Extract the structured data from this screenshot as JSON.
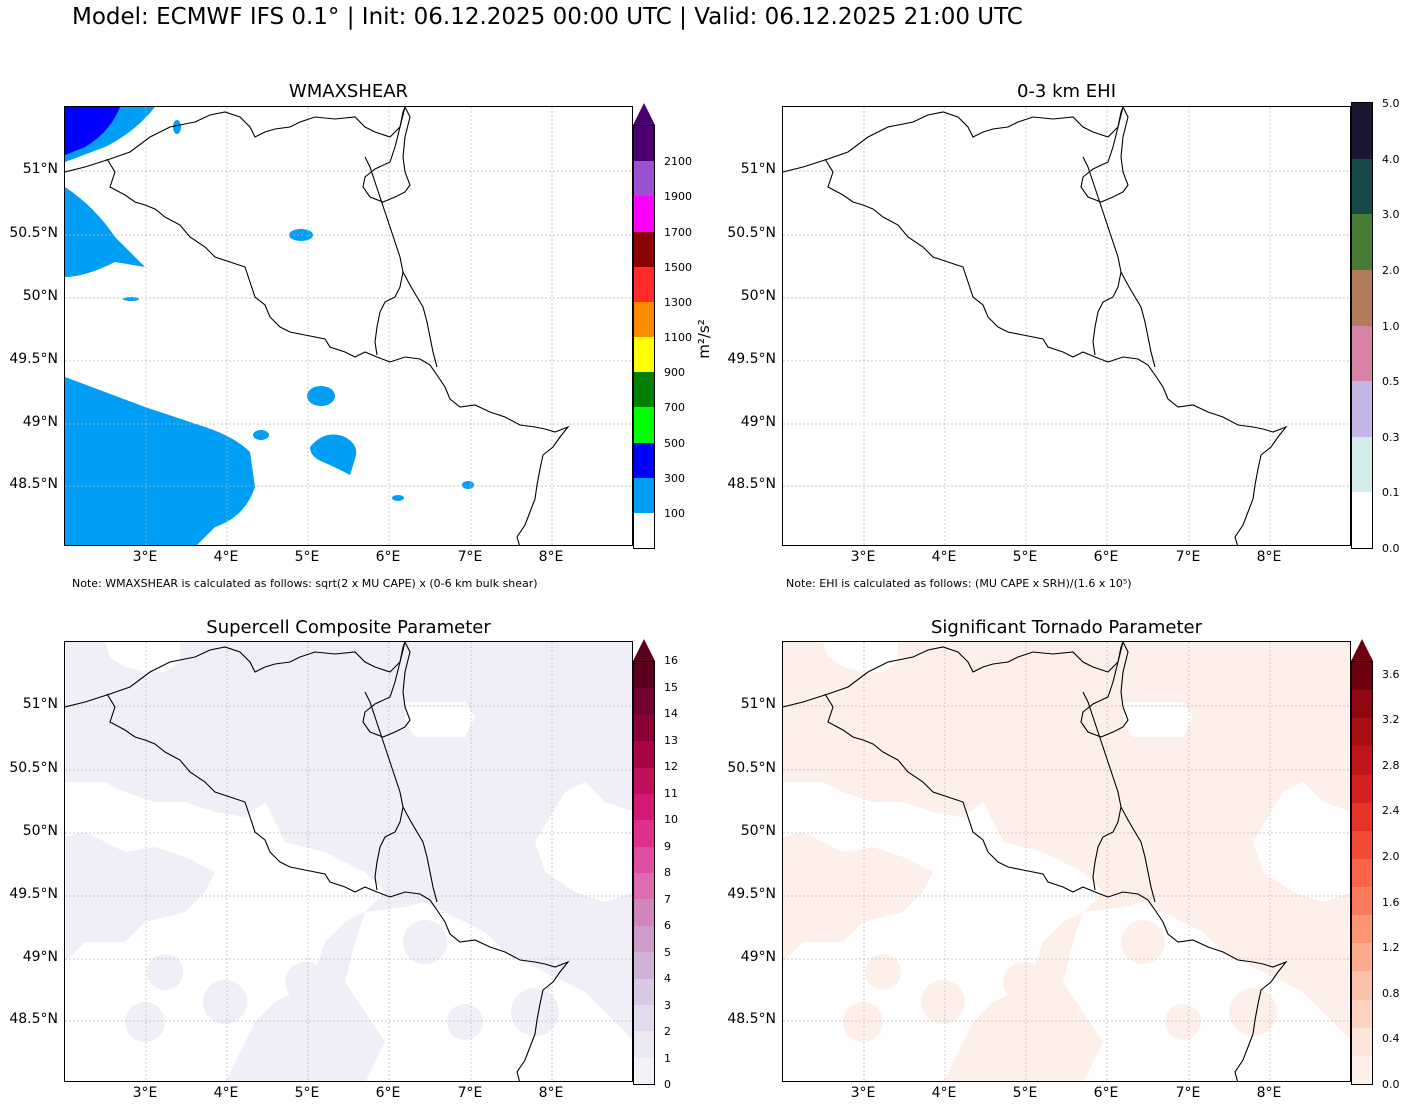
{
  "header": {
    "title": "Model: ECMWF IFS 0.1° | Init: 06.12.2025 00:00 UTC | Valid: 06.12.2025 21:00 UTC"
  },
  "axes": {
    "lat_labels": [
      "51°N",
      "50.5°N",
      "50°N",
      "49.5°N",
      "49°N",
      "48.5°N"
    ],
    "lon_labels": [
      "3°E",
      "4°E",
      "5°E",
      "6°E",
      "7°E",
      "8°E"
    ]
  },
  "panels": {
    "wmaxshear": {
      "title": "WMAXSHEAR",
      "unit": "m²/s²",
      "note": "Note: WMAXSHEAR is calculated as follows: sqrt(2 x MU CAPE) x (0-6 km bulk shear)",
      "colorbar_labels": [
        "100",
        "300",
        "500",
        "700",
        "900",
        "1100",
        "1300",
        "1500",
        "1700",
        "1900",
        "2100"
      ],
      "colors": [
        "#ffffff",
        "#009ef5",
        "#0000ff",
        "#00ff00",
        "#008000",
        "#ffff00",
        "#ff8c00",
        "#ff2a2a",
        "#8b0000",
        "#ff00ff",
        "#9a50d0",
        "#4b0070"
      ],
      "field_color": "#009ef5",
      "arrow_color": "#4b0070"
    },
    "ehi": {
      "title": "0-3 km EHI",
      "note": "Note: EHI is calculated as follows: (MU CAPE x SRH)/(1.6 x 10⁵)",
      "colorbar_labels": [
        "0.0",
        "0.1",
        "0.3",
        "0.5",
        "1.0",
        "2.0",
        "3.0",
        "4.0",
        "5.0"
      ],
      "colors": [
        "#ffffff",
        "#d2ecec",
        "#c4b6e6",
        "#d582a6",
        "#b47b5b",
        "#4a7b34",
        "#17494a",
        "#1c1632"
      ]
    },
    "scp": {
      "title": "Supercell Composite Parameter",
      "colorbar_labels": [
        "0",
        "1",
        "2",
        "3",
        "4",
        "5",
        "6",
        "7",
        "8",
        "9",
        "10",
        "11",
        "12",
        "13",
        "14",
        "15",
        "16"
      ],
      "colors": [
        "#f4f2f8",
        "#ece9f3",
        "#e2dbec",
        "#d7c9e2",
        "#cfb2d7",
        "#cd9bca",
        "#d085bd",
        "#dc6bb0",
        "#df4ea0",
        "#e02f8d",
        "#d41a74",
        "#c0105c",
        "#a80448",
        "#8b0039",
        "#73002f",
        "#5c0021"
      ],
      "field_color": "#f0eef6",
      "arrow_color": "#5c0021"
    },
    "stp": {
      "title": "Significant Tornado Parameter",
      "colorbar_labels": [
        "0.0",
        "0.4",
        "0.8",
        "1.2",
        "1.6",
        "2.0",
        "2.4",
        "2.8",
        "3.2",
        "3.6"
      ],
      "colors": [
        "#fff1ea",
        "#fee5d9",
        "#fdd4c1",
        "#fcc1aa",
        "#fcab8f",
        "#fc9574",
        "#fb7c5c",
        "#f86446",
        "#f34b36",
        "#e83428",
        "#d52121",
        "#c0151a",
        "#a91016",
        "#8f0912",
        "#6d000e"
      ],
      "field_color": "#fef0e8",
      "arrow_color": "#6d000e"
    }
  }
}
